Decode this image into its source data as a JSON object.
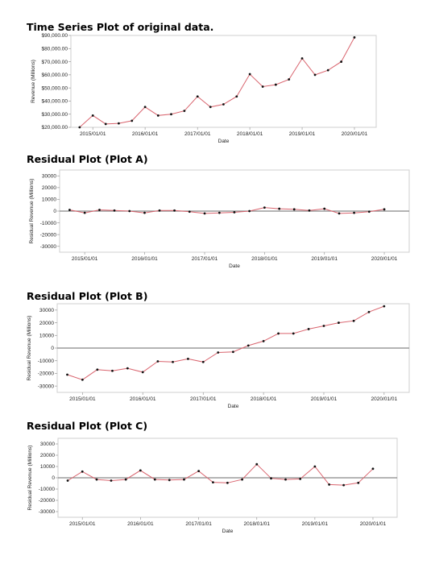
{
  "colors": {
    "line": "#d9646e",
    "point": "#111111",
    "frame": "#cfcfcf",
    "zero": "#888888"
  },
  "chart_data": [
    {
      "type": "line",
      "title": "Time Series Plot of original data.",
      "xlabel": "Date",
      "ylabel": "Revenue (Millions)",
      "x": [
        "2014/10/01",
        "2015/01/01",
        "2015/04/01",
        "2015/07/01",
        "2015/10/01",
        "2016/01/01",
        "2016/04/01",
        "2016/07/01",
        "2016/10/01",
        "2017/01/01",
        "2017/04/01",
        "2017/07/01",
        "2017/10/01",
        "2018/01/01",
        "2018/04/01",
        "2018/07/01",
        "2018/10/01",
        "2019/01/01",
        "2019/04/01",
        "2019/07/01",
        "2019/10/01",
        "2020/01/01",
        "2020/04/01"
      ],
      "y": [
        20000,
        29000,
        22500,
        23000,
        25000,
        35500,
        29000,
        30000,
        32500,
        43500,
        35500,
        37500,
        43500,
        60500,
        51000,
        52500,
        56500,
        72500,
        60000,
        63500,
        70000,
        88500,
        null
      ],
      "ylim": [
        20000,
        90000
      ],
      "yticks": [
        20000,
        30000,
        40000,
        50000,
        60000,
        70000,
        80000,
        90000
      ],
      "ytick_labels": [
        "$20,000.00",
        "$30,000.00",
        "$40,000.00",
        "$50,000.00",
        "$60,000.00",
        "$70,000.00",
        "$80,000.00",
        "$90,000.00"
      ],
      "xticks": [
        "2015/01/01",
        "2016/01/01",
        "2017/01/01",
        "2018/01/01",
        "2019/01/01",
        "2020/01/01"
      ],
      "zero_line": false,
      "grid": false
    },
    {
      "type": "line",
      "title": "Residual Plot (Plot A)",
      "xlabel": "Date",
      "ylabel": "Residual Revenue (Millions)",
      "x": [
        "2014/10/01",
        "2015/01/01",
        "2015/04/01",
        "2015/07/01",
        "2015/10/01",
        "2016/01/01",
        "2016/04/01",
        "2016/07/01",
        "2016/10/01",
        "2017/01/01",
        "2017/04/01",
        "2017/07/01",
        "2017/10/01",
        "2018/01/01",
        "2018/04/01",
        "2018/07/01",
        "2018/10/01",
        "2019/01/01",
        "2019/04/01",
        "2019/07/01",
        "2019/10/01",
        "2020/01/01"
      ],
      "y": [
        1000,
        -1500,
        1000,
        500,
        0,
        -1500,
        500,
        500,
        -500,
        -2000,
        -1500,
        -1000,
        0,
        3000,
        2000,
        1500,
        500,
        2000,
        -2000,
        -1500,
        -500,
        1500
      ],
      "ylim": [
        -35000,
        35000
      ],
      "yticks": [
        -30000,
        -20000,
        -10000,
        0,
        10000,
        20000,
        30000
      ],
      "ytick_labels": [
        "-30000",
        "-20000",
        "-10000",
        "0",
        "10000",
        "20000",
        "30000"
      ],
      "xticks": [
        "2015/01/01",
        "2016/01/01",
        "2017/01/01",
        "2018/01/01",
        "2019/01/01",
        "2020/01/01"
      ],
      "zero_line": true,
      "grid": false
    },
    {
      "type": "line",
      "title": "Residual Plot (Plot B)",
      "xlabel": "Date",
      "ylabel": "Residual Revenue (Millions)",
      "x": [
        "2014/10/01",
        "2015/01/01",
        "2015/04/01",
        "2015/07/01",
        "2015/10/01",
        "2016/01/01",
        "2016/04/01",
        "2016/07/01",
        "2016/10/01",
        "2017/01/01",
        "2017/04/01",
        "2017/07/01",
        "2017/10/01",
        "2018/01/01",
        "2018/04/01",
        "2018/07/01",
        "2018/10/01",
        "2019/01/01",
        "2019/04/01",
        "2019/07/01",
        "2019/10/01",
        "2020/01/01"
      ],
      "y": [
        -21000,
        -25000,
        -17000,
        -18000,
        -16000,
        -19000,
        -10500,
        -11000,
        -8500,
        -11000,
        -3500,
        -3000,
        2000,
        5500,
        11500,
        11500,
        15000,
        17500,
        20000,
        21500,
        28500,
        33000
      ],
      "ylim": [
        -35000,
        35000
      ],
      "yticks": [
        -30000,
        -20000,
        -10000,
        0,
        10000,
        20000,
        30000
      ],
      "ytick_labels": [
        "-30000",
        "-20000",
        "-10000",
        "0",
        "10000",
        "20000",
        "30000"
      ],
      "xticks": [
        "2015/01/01",
        "2016/01/01",
        "2017/01/01",
        "2018/01/01",
        "2019/01/01",
        "2020/01/01"
      ],
      "zero_line": true,
      "grid": false
    },
    {
      "type": "line",
      "title": "Residual Plot (Plot C)",
      "xlabel": "Date",
      "ylabel": "Residual Revenue (Millions)",
      "x": [
        "2014/10/01",
        "2015/01/01",
        "2015/04/01",
        "2015/07/01",
        "2015/10/01",
        "2016/01/01",
        "2016/04/01",
        "2016/07/01",
        "2016/10/01",
        "2017/01/01",
        "2017/04/01",
        "2017/07/01",
        "2017/10/01",
        "2018/01/01",
        "2018/04/01",
        "2018/07/01",
        "2018/10/01",
        "2019/01/01",
        "2019/04/01",
        "2019/07/01",
        "2019/10/01",
        "2020/01/01"
      ],
      "y": [
        -2500,
        5500,
        -1500,
        -2500,
        -1500,
        6500,
        -1500,
        -2000,
        -1500,
        6000,
        -4000,
        -4500,
        -1500,
        12000,
        -500,
        -1500,
        -1000,
        10000,
        -6000,
        -6500,
        -4500,
        8000
      ],
      "ylim": [
        -35000,
        35000
      ],
      "yticks": [
        -30000,
        -20000,
        -10000,
        0,
        10000,
        20000,
        30000
      ],
      "ytick_labels": [
        "-30000",
        "-20000",
        "-10000",
        "0",
        "10000",
        "20000",
        "30000"
      ],
      "xticks": [
        "2015/01/01",
        "2016/01/01",
        "2017/01/01",
        "2018/01/01",
        "2019/01/01",
        "2020/01/01"
      ],
      "zero_line": true,
      "grid": false
    }
  ]
}
